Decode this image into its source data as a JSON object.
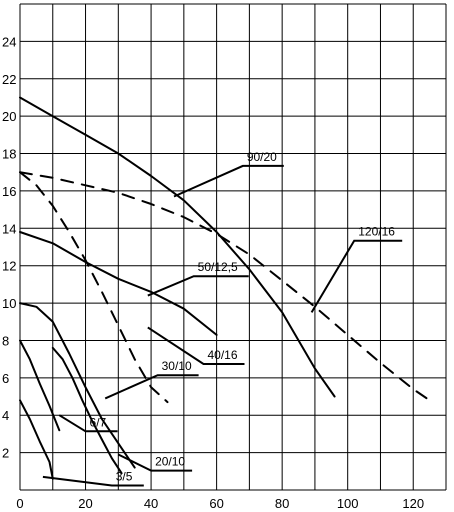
{
  "chart_data": {
    "type": "line",
    "title": "",
    "xlabel": "",
    "ylabel": "",
    "xlim": [
      0,
      130
    ],
    "ylim": [
      0,
      26
    ],
    "grid": true,
    "x_ticks": [
      "0",
      "20",
      "40",
      "60",
      "80",
      "100",
      "120"
    ],
    "y_ticks": [
      "2",
      "4",
      "6",
      "8",
      "10",
      "12",
      "14",
      "16",
      "18",
      "20",
      "22",
      "24"
    ],
    "series": [
      {
        "name": "90/20",
        "dashed": false,
        "x": [
          0,
          10,
          20,
          30,
          40,
          50,
          60,
          70,
          80,
          90,
          96
        ],
        "y": [
          21,
          20,
          19,
          18,
          16.8,
          15.5,
          13.8,
          11.8,
          9.5,
          6.5,
          5
        ],
        "label_at": [
          68,
          17.5
        ],
        "leader_to": [
          47,
          15.7
        ]
      },
      {
        "name": "120/16",
        "dashed": true,
        "x": [
          0,
          10,
          20,
          30,
          40,
          50,
          60,
          70,
          80,
          90,
          100,
          110,
          120,
          125
        ],
        "y": [
          17,
          16.7,
          16.3,
          15.9,
          15.3,
          14.6,
          13.7,
          12.6,
          11.2,
          9.8,
          8.3,
          6.8,
          5.4,
          4.8
        ],
        "label_at": [
          102,
          13.5
        ],
        "leader_to": [
          89,
          9.5
        ]
      },
      {
        "name": "50/12,5",
        "dashed": false,
        "x": [
          0,
          10,
          20,
          30,
          40,
          50,
          60
        ],
        "y": [
          13.8,
          13.2,
          12.2,
          11.3,
          10.6,
          9.7,
          8.3
        ],
        "label_at": [
          53,
          11.6
        ],
        "leader_to": [
          39,
          10.4
        ]
      },
      {
        "name": "40/16",
        "dashed": true,
        "x": [
          0,
          5,
          10,
          15,
          20,
          25,
          30,
          35,
          40,
          45
        ],
        "y": [
          17,
          16.3,
          15.2,
          13.8,
          12.3,
          10.6,
          8.8,
          7,
          5.5,
          4.7
        ],
        "label_at": [
          56,
          6.9
        ],
        "leader_to": [
          39,
          8.7
        ]
      },
      {
        "name": "30/10",
        "dashed": false,
        "x": [
          0,
          5,
          10,
          15,
          20,
          25,
          30,
          35
        ],
        "y": [
          10,
          9.8,
          9,
          7.3,
          5.5,
          3.8,
          2.5,
          1.2
        ],
        "label_at": [
          42,
          6.3
        ],
        "leader_to": [
          26,
          4.9
        ]
      },
      {
        "name": "20/10",
        "dashed": false,
        "x": [
          10,
          13,
          16,
          19,
          22,
          25,
          28,
          31
        ],
        "y": [
          7.6,
          7,
          6,
          4.8,
          3.7,
          2.7,
          1.7,
          0.9
        ],
        "label_at": [
          40,
          1.2
        ],
        "leader_to": [
          30,
          1.9
        ]
      },
      {
        "name": "6/7",
        "dashed": false,
        "x": [
          0,
          3,
          6,
          9,
          12
        ],
        "y": [
          8,
          7,
          5.7,
          4.5,
          3.2
        ],
        "label_at": [
          20,
          3.3
        ],
        "leader_to": [
          12,
          4
        ]
      },
      {
        "name": "3/5",
        "dashed": false,
        "x": [
          0,
          3,
          6,
          9,
          10
        ],
        "y": [
          4.8,
          3.8,
          2.6,
          1.5,
          0.6
        ],
        "label_at": [
          28,
          0.4
        ],
        "leader_to": [
          7,
          0.7
        ]
      }
    ]
  }
}
